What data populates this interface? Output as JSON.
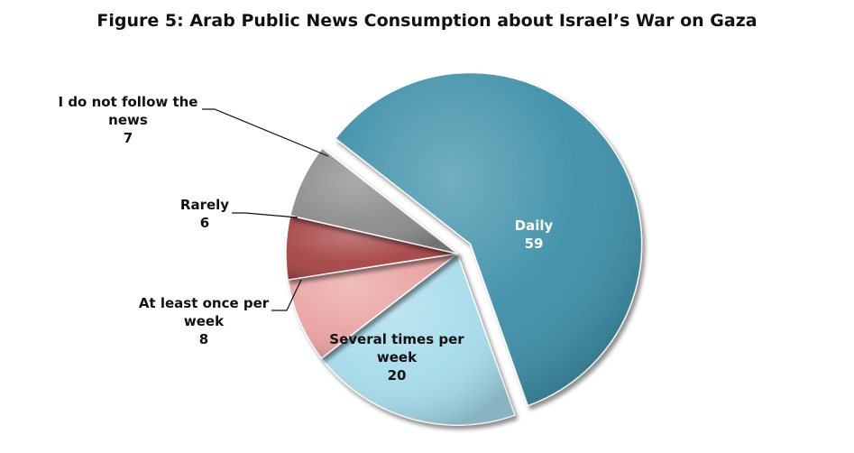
{
  "chart_data": {
    "type": "pie",
    "title": "Figure 5: Arab Public News Consumption about Israel’s War on Gaza",
    "slices": [
      {
        "label": [
          "Daily"
        ],
        "value": 59,
        "display": "59",
        "color": "#3c8fa8"
      },
      {
        "label": [
          "Several times per",
          "week"
        ],
        "value": 20,
        "display": "20",
        "color": "#a5dbea"
      },
      {
        "label": [
          "At least once per",
          "week"
        ],
        "value": 8,
        "display": "8",
        "color": "#eaa3a3"
      },
      {
        "label": [
          "Rarely"
        ],
        "value": 6,
        "display": "6",
        "color": "#a64444"
      },
      {
        "label": [
          "I do not follow the",
          "news"
        ],
        "value": 7,
        "display": "7",
        "color": "#8b8b8b"
      }
    ],
    "exploded_slice": "Daily",
    "legend": "none",
    "label_style": "callout lines"
  }
}
